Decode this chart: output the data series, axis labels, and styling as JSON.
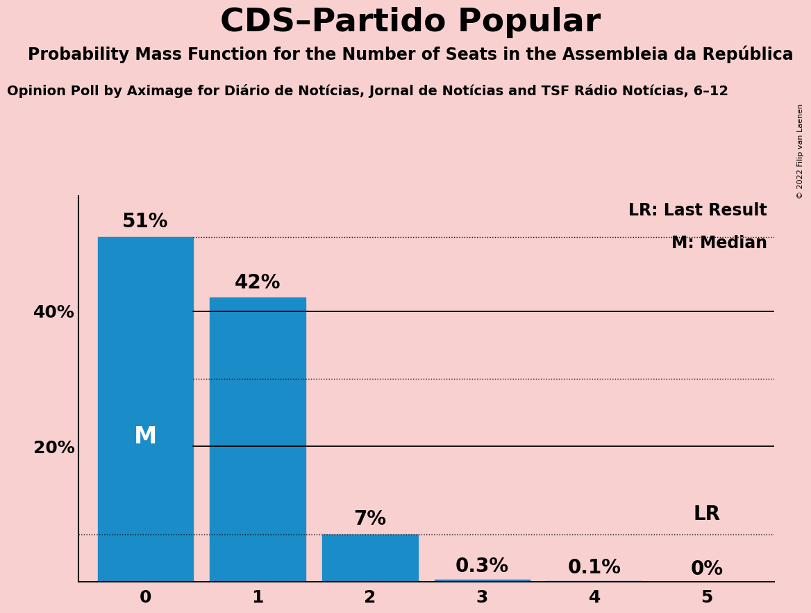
{
  "title": "CDS–Partido Popular",
  "subtitle": "Probability Mass Function for the Number of Seats in the Assembleia da República",
  "source_line": "Opinion Poll by Aximage for Diário de Notícias, Jornal de Notícias and TSF Rádio Notícias, 6–12",
  "copyright": "© 2022 Filip van Laenen",
  "categories": [
    0,
    1,
    2,
    3,
    4,
    5
  ],
  "values": [
    51,
    42,
    7,
    0.3,
    0.1,
    0
  ],
  "bar_labels": [
    "51%",
    "42%",
    "7%",
    "0.3%",
    "0.1%",
    "0%"
  ],
  "bar_color": "#1a8dc8",
  "background_color": "#f9d0d0",
  "median_bar": 0,
  "lr_bar": 5,
  "median_label": "M",
  "lr_label": "LR",
  "legend_lr": "LR: Last Result",
  "legend_m": "M: Median",
  "ylim": [
    0,
    57
  ],
  "title_fontsize": 34,
  "subtitle_fontsize": 17,
  "source_fontsize": 14,
  "tick_fontsize": 18,
  "bar_label_fontsize": 20,
  "median_label_fontsize": 24,
  "legend_fontsize": 17,
  "copyright_fontsize": 8
}
